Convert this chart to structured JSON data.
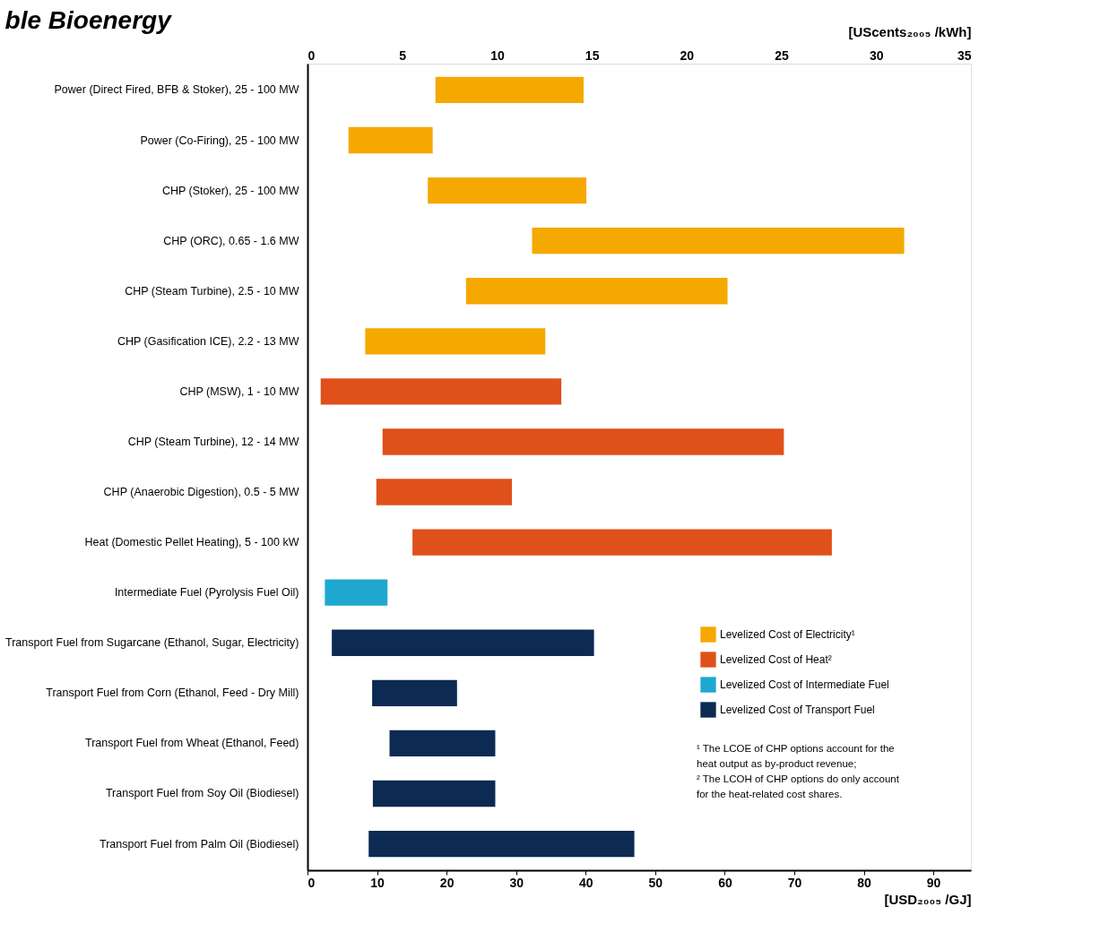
{
  "chart_data": {
    "type": "bar",
    "orientation": "horizontal",
    "title": "ble Bioenergy",
    "categories": [
      "Power (Direct Fired, BFB & Stoker), 25 - 100 MW",
      "Power (Co-Firing), 25 - 100 MW",
      "CHP (Stoker), 25 - 100 MW",
      "CHP (ORC), 0.65 - 1.6 MW",
      "CHP (Steam Turbine), 2.5 - 10 MW",
      "CHP (Gasification ICE), 2.2 - 13 MW",
      "CHP (MSW), 1 - 10 MW",
      "CHP (Steam Turbine), 12 - 14 MW",
      "CHP (Anaerobic Digestion), 0.5 - 5 MW",
      "Heat (Domestic Pellet Heating), 5 - 100 kW",
      "Intermediate Fuel (Pyrolysis Fuel Oil)",
      "Transport Fuel from Sugarcane (Ethanol, Sugar, Electricity)",
      "Transport Fuel from Corn (Ethanol, Feed - Dry Mill)",
      "Transport Fuel from Wheat (Ethanol, Feed)",
      "Transport Fuel from Soy Oil (Biodiesel)",
      "Transport Fuel from Palm Oil (Biodiesel)"
    ],
    "series": [
      {
        "name": "Levelized Cost of Electricity¹",
        "color": "#f5a800",
        "base": [
          18.3,
          5.8,
          17.2,
          32.2,
          22.7,
          8.2,
          null,
          null,
          null,
          null,
          null,
          null,
          null,
          null,
          null,
          null
        ],
        "values": [
          21.5,
          12.3,
          23.0,
          53.7,
          37.8,
          26.1,
          null,
          null,
          null,
          null,
          null,
          null,
          null,
          null,
          null,
          null
        ]
      },
      {
        "name": "Levelized Cost of Heat²",
        "color": "#e0501a",
        "base": [
          null,
          null,
          null,
          null,
          null,
          null,
          1.8,
          10.7,
          9.8,
          15.0,
          null,
          null,
          null,
          null,
          null,
          null
        ],
        "values": [
          null,
          null,
          null,
          null,
          null,
          null,
          34.8,
          57.9,
          19.7,
          60.5,
          null,
          null,
          null,
          null,
          null,
          null
        ]
      },
      {
        "name": "Levelized Cost of Intermediate Fuel",
        "color": "#1ea8d0",
        "base": [
          null,
          null,
          null,
          null,
          null,
          null,
          null,
          null,
          null,
          null,
          2.4,
          null,
          null,
          null,
          null,
          null
        ],
        "values": [
          null,
          null,
          null,
          null,
          null,
          null,
          null,
          null,
          null,
          null,
          9.2,
          null,
          null,
          null,
          null,
          null
        ]
      },
      {
        "name": "Levelized Cost of Transport Fuel",
        "color": "#0d2a52",
        "base": [
          null,
          null,
          null,
          null,
          null,
          null,
          null,
          null,
          null,
          null,
          null,
          3.4,
          9.2,
          11.7,
          9.3,
          8.7
        ],
        "values": [
          null,
          null,
          null,
          null,
          null,
          null,
          null,
          null,
          null,
          null,
          null,
          37.9,
          12.4,
          15.4,
          17.8,
          38.4
        ]
      }
    ],
    "xlim": [
      0,
      95.4
    ],
    "xticks": [
      0,
      10,
      20,
      30,
      40,
      50,
      60,
      70,
      80,
      90
    ],
    "xlabel": "[USD₂₀₀₅ /GJ]",
    "x2lim": [
      0,
      35
    ],
    "x2ticks": [
      0,
      5,
      10,
      15,
      20,
      25,
      30,
      35
    ],
    "x2label": "[UScents₂₀₀₅ /kWh]",
    "legend": "bottom right",
    "grid": false,
    "annotations": [
      "¹ The LCOE of CHP options account for the",
      "heat output as by-product revenue;",
      "² The LCOH of CHP options do only account",
      "for the heat-related cost shares."
    ]
  }
}
